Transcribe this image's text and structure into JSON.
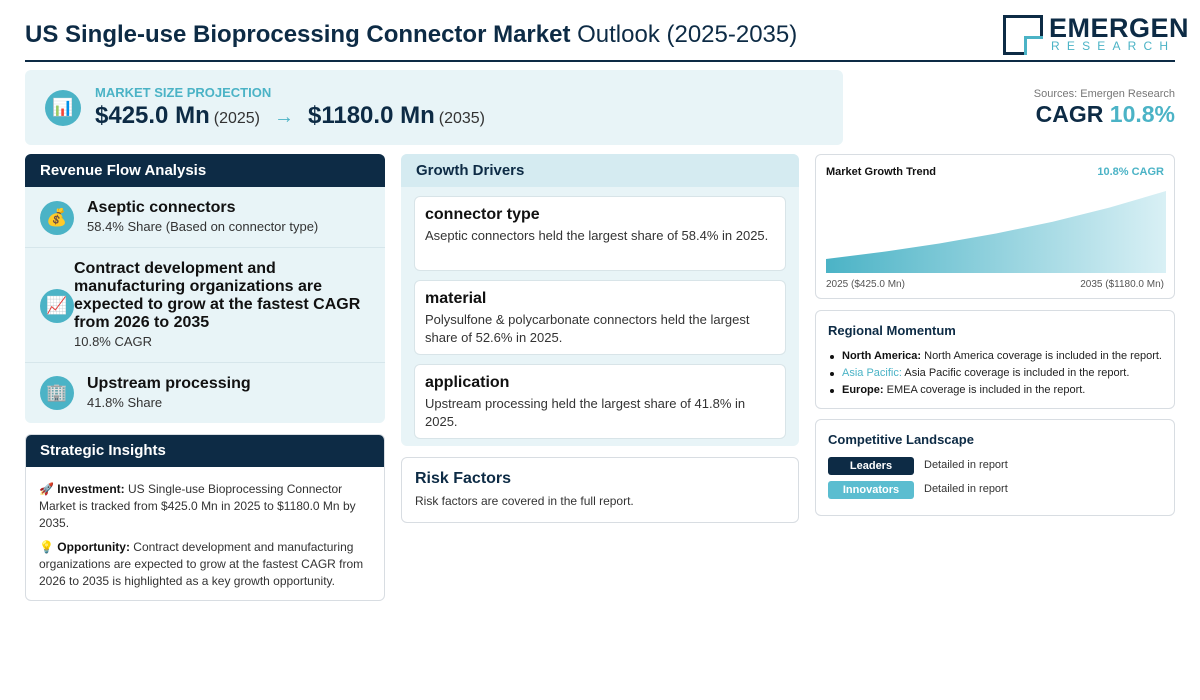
{
  "header": {
    "title_bold": "US Single-use Bioprocessing Connector Market",
    "title_rest": "Outlook (2025-2035)",
    "logo_main": "EMERGEN",
    "logo_sub": "RESEARCH"
  },
  "market_size": {
    "icon": "bar-chart-icon",
    "label": "MARKET SIZE PROJECTION",
    "start_value": "$425.0 Mn",
    "start_year": "(2025)",
    "arrow": "→",
    "end_value": "$1180.0 Mn",
    "end_year": "(2035)"
  },
  "sources": "Sources: Emergen Research",
  "cagr": {
    "label": "CAGR",
    "value": "10.8%"
  },
  "revenue_flow": {
    "title": "Revenue Flow Analysis",
    "items": [
      {
        "icon": "money-bag-icon",
        "glyph": "💰",
        "title": "Aseptic connectors",
        "sub": "58.4% Share (Based on connector type)"
      },
      {
        "icon": "chart-increasing-icon",
        "glyph": "📈",
        "title": "Contract development and manufacturing organizations are expected to grow at the fastest CAGR from 2026 to 2035",
        "sub": "10.8% CAGR"
      },
      {
        "icon": "building-icon",
        "glyph": "🏢",
        "title": "Upstream processing",
        "sub": "41.8% Share"
      }
    ]
  },
  "strategic": {
    "title": "Strategic Insights",
    "investment_glyph": "🚀",
    "investment_label": "Investment:",
    "investment_text": "US Single-use Bioprocessing Connector Market is tracked from $425.0 Mn in 2025 to $1180.0 Mn by 2035.",
    "opportunity_glyph": "💡",
    "opportunity_label": "Opportunity:",
    "opportunity_text": "Contract development and manufacturing organizations are expected to grow at the fastest CAGR from 2026 to 2035 is highlighted as a key growth opportunity."
  },
  "drivers": {
    "title": "Growth Drivers",
    "items": [
      {
        "title": "connector type",
        "text": "Aseptic connectors held the largest share of 58.4% in 2025."
      },
      {
        "title": "material",
        "text": "Polysulfone & polycarbonate connectors held the largest share of 52.6% in 2025."
      },
      {
        "title": "application",
        "text": "Upstream processing held the largest share of 41.8% in 2025."
      }
    ]
  },
  "risk": {
    "title": "Risk Factors",
    "text": "Risk factors are covered in the full report."
  },
  "trend": {
    "title": "Market Growth Trend",
    "cagr_label": "10.8% CAGR",
    "start_label": "2025 ($425.0 Mn)",
    "end_label": "2035 ($1180.0 Mn)"
  },
  "chart_data": {
    "type": "area",
    "x": [
      2025,
      2035
    ],
    "values": [
      425.0,
      1180.0
    ],
    "title": "Market Growth Trend",
    "colors": {
      "fill_top": "#ffffff",
      "fill_bottom": "#4bb3c6"
    }
  },
  "regional": {
    "title": "Regional Momentum",
    "items": [
      {
        "name": "North America:",
        "text": "North America coverage is included in the report.",
        "accent": false
      },
      {
        "name": "Asia Pacific:",
        "text": "Asia Pacific coverage is included in the report.",
        "accent": true
      },
      {
        "name": "Europe:",
        "text": "EMEA coverage is included in the report.",
        "accent": false
      }
    ]
  },
  "competitive": {
    "title": "Competitive Landscape",
    "rows": [
      {
        "badge": "Leaders",
        "text": "Detailed in report"
      },
      {
        "badge": "Innovators",
        "text": "Detailed in report"
      }
    ]
  },
  "colors": {
    "navy": "#0d2b45",
    "teal": "#4bb3c6",
    "panel": "#e8f4f7"
  }
}
